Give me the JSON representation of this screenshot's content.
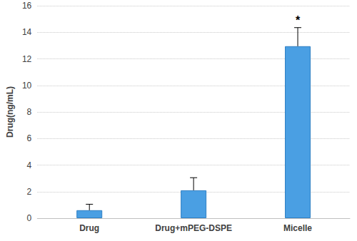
{
  "chart_data": {
    "type": "bar",
    "y_label": "Drug(ng/mL)",
    "categories": [
      "Drug",
      "Drug+mPEG-DSPE",
      "Micelle"
    ],
    "values": [
      0.6,
      2.1,
      12.95
    ],
    "errors": [
      0.45,
      0.95,
      1.4
    ],
    "color": "#4a9fe3",
    "ylim": [
      0,
      16
    ],
    "yticks": [
      0,
      2,
      4,
      6,
      8,
      10,
      12,
      14,
      16
    ],
    "grid": true,
    "annotations": [
      {
        "category": "Micelle",
        "text": "*"
      }
    ]
  }
}
